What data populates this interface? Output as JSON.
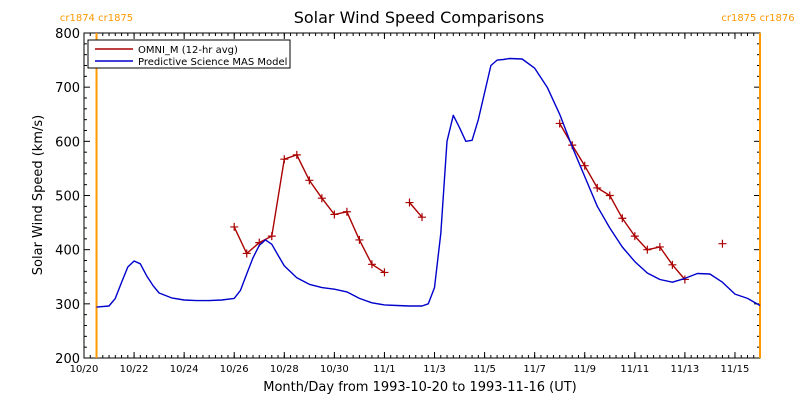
{
  "chart_data": {
    "type": "line",
    "title": "Solar Wind Speed Comparisons",
    "xlabel": "Month/Day from 1993-10-20 to 1993-11-16 (UT)",
    "ylabel": "Solar Wind Speed (km/s)",
    "xlim": [
      "1993-10-20",
      "1993-11-16"
    ],
    "ylim": [
      200,
      800
    ],
    "yticks": [
      200,
      300,
      400,
      500,
      600,
      700,
      800
    ],
    "xticks": [
      {
        "date": "1993-10-20",
        "label": "10/20"
      },
      {
        "date": "1993-10-22",
        "label": "10/22"
      },
      {
        "date": "1993-10-24",
        "label": "10/24"
      },
      {
        "date": "1993-10-26",
        "label": "10/26"
      },
      {
        "date": "1993-10-28",
        "label": "10/28"
      },
      {
        "date": "1993-10-30",
        "label": "10/30"
      },
      {
        "date": "1993-11-01",
        "label": "11/1"
      },
      {
        "date": "1993-11-03",
        "label": "11/3"
      },
      {
        "date": "1993-11-05",
        "label": "11/5"
      },
      {
        "date": "1993-11-07",
        "label": "11/7"
      },
      {
        "date": "1993-11-09",
        "label": "11/9"
      },
      {
        "date": "1993-11-11",
        "label": "11/11"
      },
      {
        "date": "1993-11-13",
        "label": "11/13"
      },
      {
        "date": "1993-11-15",
        "label": "11/15"
      }
    ],
    "carrington_markers": [
      {
        "date": "1993-10-20 12:00",
        "label_left": "cr1874",
        "label_right": "cr1875",
        "side": "left"
      },
      {
        "date": "1993-11-16 00:00",
        "label_left": "cr1875",
        "label_right": "cr1876",
        "side": "right"
      }
    ],
    "legend": {
      "placement": "top-left"
    },
    "series": [
      {
        "name": "OMNI_M (12-hr avg)",
        "color": "#aa0000",
        "marker": "plus",
        "segments": [
          [
            [
              "1993-10-26 00:00",
              442
            ],
            [
              "1993-10-26 12:00",
              393
            ],
            [
              "1993-10-27 00:00",
              413
            ],
            [
              "1993-10-27 12:00",
              425
            ],
            [
              "1993-10-28 00:00",
              567
            ],
            [
              "1993-10-28 12:00",
              575
            ],
            [
              "1993-10-29 00:00",
              528
            ],
            [
              "1993-10-29 12:00",
              495
            ],
            [
              "1993-10-30 00:00",
              465
            ],
            [
              "1993-10-30 12:00",
              470
            ],
            [
              "1993-10-31 00:00",
              418
            ],
            [
              "1993-10-31 12:00",
              373
            ],
            [
              "1993-11-01 00:00",
              358
            ]
          ],
          [
            [
              "1993-11-02 00:00",
              487
            ],
            [
              "1993-11-02 12:00",
              460
            ]
          ],
          [
            [
              "1993-11-08 00:00",
              633
            ],
            [
              "1993-11-08 12:00",
              593
            ],
            [
              "1993-11-09 00:00",
              555
            ],
            [
              "1993-11-09 12:00",
              514
            ],
            [
              "1993-11-10 00:00",
              500
            ],
            [
              "1993-11-10 12:00",
              458
            ],
            [
              "1993-11-11 00:00",
              425
            ],
            [
              "1993-11-11 12:00",
              400
            ],
            [
              "1993-11-12 00:00",
              405
            ],
            [
              "1993-11-12 12:00",
              372
            ],
            [
              "1993-11-13 00:00",
              345
            ]
          ],
          [
            [
              "1993-11-14 12:00",
              411
            ]
          ]
        ]
      },
      {
        "name": "Predictive Science MAS Model",
        "color": "#0000cc",
        "marker": "none",
        "points": [
          [
            "1993-10-20 12:00",
            294
          ],
          [
            "1993-10-21 00:00",
            296
          ],
          [
            "1993-10-21 06:00",
            310
          ],
          [
            "1993-10-21 12:00",
            340
          ],
          [
            "1993-10-21 18:00",
            368
          ],
          [
            "1993-10-22 00:00",
            379
          ],
          [
            "1993-10-22 06:00",
            374
          ],
          [
            "1993-10-22 12:00",
            352
          ],
          [
            "1993-10-22 18:00",
            334
          ],
          [
            "1993-10-23 00:00",
            320
          ],
          [
            "1993-10-23 12:00",
            311
          ],
          [
            "1993-10-24 00:00",
            307
          ],
          [
            "1993-10-24 12:00",
            306
          ],
          [
            "1993-10-25 00:00",
            306
          ],
          [
            "1993-10-25 12:00",
            307
          ],
          [
            "1993-10-26 00:00",
            310
          ],
          [
            "1993-10-26 06:00",
            325
          ],
          [
            "1993-10-26 12:00",
            355
          ],
          [
            "1993-10-26 18:00",
            385
          ],
          [
            "1993-10-27 00:00",
            408
          ],
          [
            "1993-10-27 06:00",
            418
          ],
          [
            "1993-10-27 12:00",
            410
          ],
          [
            "1993-10-27 18:00",
            390
          ],
          [
            "1993-10-28 00:00",
            370
          ],
          [
            "1993-10-28 12:00",
            348
          ],
          [
            "1993-10-29 00:00",
            336
          ],
          [
            "1993-10-29 12:00",
            330
          ],
          [
            "1993-10-30 00:00",
            327
          ],
          [
            "1993-10-30 12:00",
            322
          ],
          [
            "1993-10-31 00:00",
            310
          ],
          [
            "1993-10-31 12:00",
            302
          ],
          [
            "1993-11-01 00:00",
            298
          ],
          [
            "1993-11-01 12:00",
            297
          ],
          [
            "1993-11-02 00:00",
            296
          ],
          [
            "1993-11-02 12:00",
            296
          ],
          [
            "1993-11-02 18:00",
            300
          ],
          [
            "1993-11-03 00:00",
            330
          ],
          [
            "1993-11-03 06:00",
            430
          ],
          [
            "1993-11-03 12:00",
            600
          ],
          [
            "1993-11-03 18:00",
            648
          ],
          [
            "1993-11-04 00:00",
            625
          ],
          [
            "1993-11-04 06:00",
            600
          ],
          [
            "1993-11-04 12:00",
            602
          ],
          [
            "1993-11-04 18:00",
            640
          ],
          [
            "1993-11-05 00:00",
            690
          ],
          [
            "1993-11-05 06:00",
            740
          ],
          [
            "1993-11-05 12:00",
            750
          ],
          [
            "1993-11-05 18:00",
            751
          ],
          [
            "1993-11-06 00:00",
            753
          ],
          [
            "1993-11-06 12:00",
            752
          ],
          [
            "1993-11-07 00:00",
            735
          ],
          [
            "1993-11-07 12:00",
            700
          ],
          [
            "1993-11-08 00:00",
            650
          ],
          [
            "1993-11-08 12:00",
            590
          ],
          [
            "1993-11-09 00:00",
            535
          ],
          [
            "1993-11-09 12:00",
            480
          ],
          [
            "1993-11-10 00:00",
            440
          ],
          [
            "1993-11-10 12:00",
            405
          ],
          [
            "1993-11-11 00:00",
            378
          ],
          [
            "1993-11-11 12:00",
            357
          ],
          [
            "1993-11-12 00:00",
            345
          ],
          [
            "1993-11-12 12:00",
            340
          ],
          [
            "1993-11-13 00:00",
            347
          ],
          [
            "1993-11-13 12:00",
            356
          ],
          [
            "1993-11-14 00:00",
            355
          ],
          [
            "1993-11-14 12:00",
            340
          ],
          [
            "1993-11-15 00:00",
            318
          ],
          [
            "1993-11-15 12:00",
            310
          ],
          [
            "1993-11-16 00:00",
            297
          ]
        ]
      }
    ]
  }
}
